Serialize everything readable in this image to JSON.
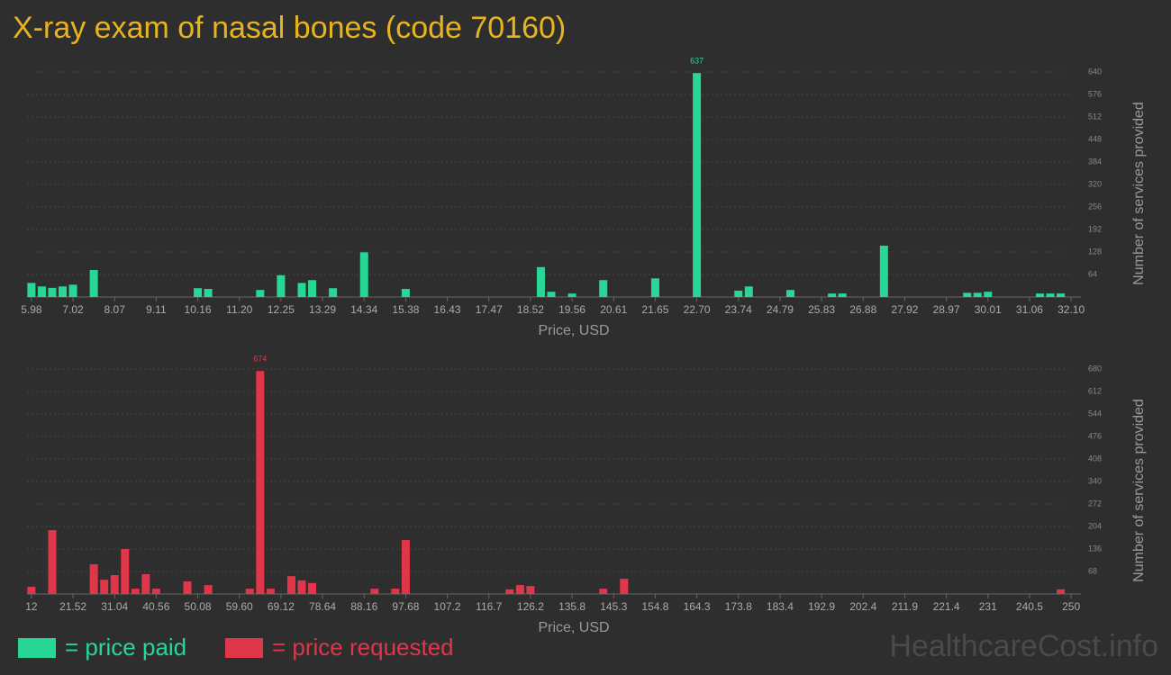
{
  "title": "X-ray exam of nasal bones (code 70160)",
  "watermark": "HealthcareCost.info",
  "chart_data": [
    {
      "type": "bar",
      "categories": [
        "5.98",
        null,
        null,
        null,
        "7.02",
        null,
        null,
        null,
        "8.07",
        null,
        null,
        null,
        "9.11",
        null,
        null,
        null,
        "10.16",
        null,
        null,
        null,
        "11.20",
        null,
        null,
        null,
        "12.25",
        null,
        null,
        null,
        "13.29",
        null,
        null,
        null,
        "14.34",
        null,
        null,
        null,
        "15.38",
        null,
        null,
        null,
        "16.43",
        null,
        null,
        null,
        "17.47",
        null,
        null,
        null,
        "18.52",
        null,
        null,
        null,
        "19.56",
        null,
        null,
        null,
        "20.61",
        null,
        null,
        null,
        "21.65",
        null,
        null,
        null,
        "22.70",
        null,
        null,
        null,
        "23.74",
        null,
        null,
        null,
        "24.79",
        null,
        null,
        null,
        "25.83",
        null,
        null,
        null,
        "26.88",
        null,
        null,
        null,
        "27.92",
        null,
        null,
        null,
        "28.97",
        null,
        null,
        null,
        "30.01",
        null,
        null,
        null,
        "31.06",
        null,
        null,
        null,
        "32.10"
      ],
      "series": [
        {
          "name": "= price paid",
          "color": "#27d796",
          "values": [
            40,
            30,
            26,
            30,
            35,
            0,
            77,
            0,
            0,
            0,
            0,
            0,
            0,
            0,
            0,
            0,
            25,
            23,
            0,
            0,
            0,
            0,
            20,
            0,
            62,
            0,
            40,
            48,
            0,
            25,
            0,
            0,
            127,
            0,
            0,
            0,
            23,
            0,
            0,
            0,
            0,
            0,
            0,
            0,
            0,
            0,
            0,
            0,
            0,
            85,
            15,
            0,
            10,
            0,
            0,
            48,
            0,
            0,
            0,
            0,
            53,
            0,
            0,
            0,
            637,
            0,
            0,
            0,
            18,
            30,
            0,
            0,
            0,
            20,
            0,
            0,
            0,
            10,
            10,
            0,
            0,
            0,
            146,
            0,
            0,
            0,
            0,
            0,
            0,
            0,
            12,
            12,
            15,
            0,
            0,
            0,
            0,
            10,
            10,
            10,
            0
          ]
        }
      ],
      "ylim": [
        0,
        640
      ],
      "yticks": [
        64,
        128,
        192,
        256,
        320,
        384,
        448,
        512,
        576,
        640
      ],
      "x_label": "Price, USD",
      "y_label": "Number of services provided",
      "grid": true
    },
    {
      "type": "bar",
      "categories": [
        "12",
        null,
        null,
        null,
        "21.52",
        null,
        null,
        null,
        "31.04",
        null,
        null,
        null,
        "40.56",
        null,
        null,
        null,
        "50.08",
        null,
        null,
        null,
        "59.60",
        null,
        null,
        null,
        "69.12",
        null,
        null,
        null,
        "78.64",
        null,
        null,
        null,
        "88.16",
        null,
        null,
        null,
        "97.68",
        null,
        null,
        null,
        "107.2",
        null,
        null,
        null,
        "116.7",
        null,
        null,
        null,
        "126.2",
        null,
        null,
        null,
        "135.8",
        null,
        null,
        null,
        "145.3",
        null,
        null,
        null,
        "154.8",
        null,
        null,
        null,
        "164.3",
        null,
        null,
        null,
        "173.8",
        null,
        null,
        null,
        "183.4",
        null,
        null,
        null,
        "192.9",
        null,
        null,
        null,
        "202.4",
        null,
        null,
        null,
        "211.9",
        null,
        null,
        null,
        "221.4",
        null,
        null,
        null,
        "231",
        null,
        null,
        null,
        "240.5",
        null,
        null,
        null,
        "250"
      ],
      "series": [
        {
          "name": "= price requested",
          "color": "#e0364a",
          "values": [
            22,
            0,
            193,
            0,
            0,
            0,
            90,
            43,
            57,
            136,
            16,
            60,
            16,
            0,
            0,
            38,
            0,
            27,
            0,
            0,
            0,
            16,
            674,
            16,
            0,
            54,
            41,
            33,
            0,
            0,
            0,
            0,
            0,
            16,
            0,
            16,
            163,
            0,
            0,
            0,
            0,
            0,
            0,
            0,
            0,
            0,
            14,
            27,
            24,
            0,
            0,
            0,
            0,
            0,
            0,
            16,
            0,
            46,
            0,
            0,
            0,
            0,
            0,
            0,
            0,
            0,
            0,
            0,
            0,
            0,
            0,
            0,
            0,
            0,
            0,
            0,
            0,
            0,
            0,
            0,
            0,
            0,
            0,
            0,
            0,
            0,
            0,
            0,
            0,
            0,
            0,
            0,
            0,
            0,
            0,
            0,
            0,
            0,
            0,
            14,
            0
          ]
        }
      ],
      "ylim": [
        0,
        680
      ],
      "yticks": [
        68,
        136,
        204,
        272,
        340,
        408,
        476,
        544,
        612,
        680
      ],
      "x_label": "Price, USD",
      "y_label": "Number of services provided",
      "grid": true
    }
  ]
}
